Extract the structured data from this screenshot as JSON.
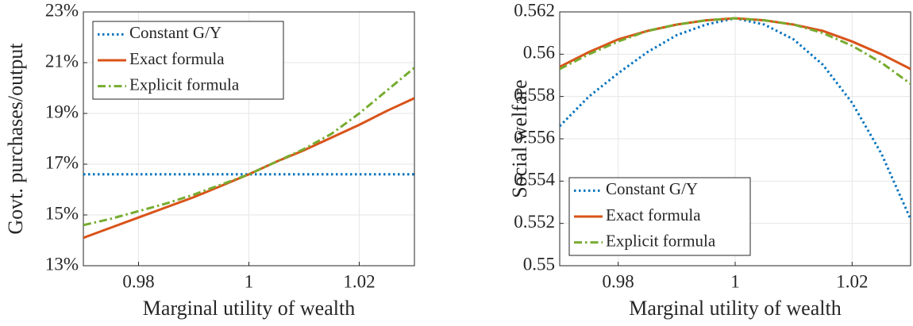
{
  "chart_data": [
    {
      "type": "line",
      "xlabel": "Marginal utility of wealth",
      "ylabel": "Govt. purchases/output",
      "x": [
        0.97,
        0.975,
        0.98,
        0.985,
        0.99,
        0.995,
        1,
        1.005,
        1.01,
        1.015,
        1.02,
        1.025,
        1.03
      ],
      "series": [
        {
          "name": "Constant G/Y",
          "color": "#0072BD",
          "style": "dotted",
          "values": [
            16.6,
            16.6,
            16.6,
            16.6,
            16.6,
            16.6,
            16.6,
            16.6,
            16.6,
            16.6,
            16.6,
            16.6,
            16.6
          ]
        },
        {
          "name": "Exact formula",
          "color": "#D95319",
          "style": "solid",
          "values": [
            14.1,
            14.5,
            14.9,
            15.3,
            15.7,
            16.15,
            16.6,
            17.1,
            17.55,
            18.05,
            18.55,
            19.1,
            19.6
          ]
        },
        {
          "name": "Explicit formula",
          "color": "#77AC30",
          "style": "dashdot",
          "values": [
            14.6,
            14.85,
            15.15,
            15.45,
            15.8,
            16.2,
            16.6,
            17.1,
            17.6,
            18.2,
            19.0,
            19.9,
            20.8
          ]
        }
      ],
      "xlim": [
        0.97,
        1.03
      ],
      "xticks": [
        0.98,
        1,
        1.02
      ],
      "ylim": [
        13,
        23
      ],
      "yticks": [
        {
          "value": 13,
          "label": "13%"
        },
        {
          "value": 15,
          "label": "15%"
        },
        {
          "value": 17,
          "label": "17%"
        },
        {
          "value": 19,
          "label": "19%"
        },
        {
          "value": 21,
          "label": "21%"
        },
        {
          "value": 23,
          "label": "23%"
        }
      ],
      "grid": true,
      "legend": "upper left"
    },
    {
      "type": "line",
      "xlabel": "Marginal utility of wealth",
      "ylabel": "Social welfare",
      "x": [
        0.97,
        0.975,
        0.98,
        0.985,
        0.99,
        0.995,
        1,
        1.005,
        1.01,
        1.015,
        1.02,
        1.025,
        1.03
      ],
      "series": [
        {
          "name": "Constant G/Y",
          "color": "#0072BD",
          "style": "dotted",
          "values": [
            0.5566,
            0.558,
            0.5591,
            0.5601,
            0.5609,
            0.5614,
            0.5617,
            0.5614,
            0.5607,
            0.5595,
            0.5577,
            0.5553,
            0.5522
          ]
        },
        {
          "name": "Exact formula",
          "color": "#D95319",
          "style": "solid",
          "values": [
            0.5594,
            0.5601,
            0.5607,
            0.5611,
            0.5614,
            0.5616,
            0.5617,
            0.5616,
            0.5614,
            0.5611,
            0.5606,
            0.56,
            0.5593
          ]
        },
        {
          "name": "Explicit formula",
          "color": "#77AC30",
          "style": "dashdot",
          "values": [
            0.5593,
            0.56,
            0.5606,
            0.5611,
            0.5614,
            0.5616,
            0.5617,
            0.5616,
            0.5614,
            0.561,
            0.5604,
            0.5596,
            0.5586
          ]
        }
      ],
      "xlim": [
        0.97,
        1.03
      ],
      "xticks": [
        0.98,
        1,
        1.02
      ],
      "ylim": [
        0.55,
        0.562
      ],
      "yticks": [
        0.55,
        0.552,
        0.554,
        0.556,
        0.558,
        0.56,
        0.562
      ],
      "grid": true,
      "legend": "lower left"
    }
  ]
}
